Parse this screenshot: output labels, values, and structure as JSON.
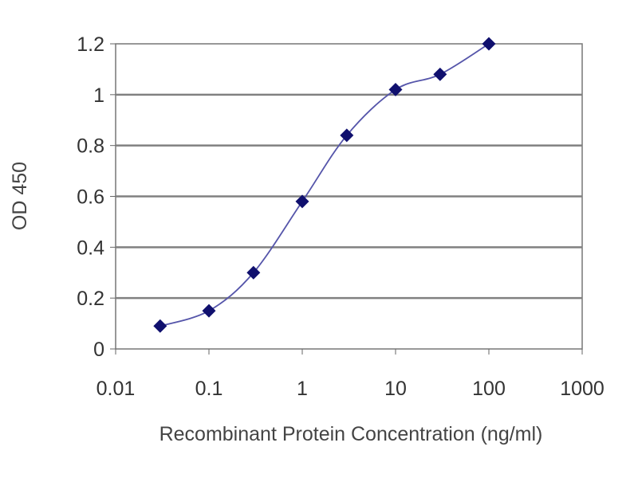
{
  "chart_data": {
    "type": "line",
    "xscale": "log",
    "xlabel": "Recombinant Protein Concentration (ng/ml)",
    "ylabel": "OD 450",
    "xlim": [
      0.01,
      1000
    ],
    "ylim": [
      0,
      1.2
    ],
    "x_tick_values": [
      0.01,
      0.1,
      1,
      10,
      100,
      1000
    ],
    "x_tick_labels": [
      "0.01",
      "0.1",
      "1",
      "10",
      "100",
      "1000"
    ],
    "y_tick_values": [
      0,
      0.2,
      0.4,
      0.6,
      0.8,
      1,
      1.2
    ],
    "y_tick_labels": [
      "0",
      "0.2",
      "0.4",
      "0.6",
      "0.8",
      "1",
      "1.2"
    ],
    "grid": "horizontal",
    "series": [
      {
        "x": [
          0.03,
          0.1,
          0.3,
          1,
          3,
          10,
          30,
          100
        ],
        "y": [
          0.09,
          0.15,
          0.3,
          0.58,
          0.84,
          1.02,
          1.08,
          1.2
        ]
      }
    ],
    "colors": {
      "line": "#5555aa",
      "marker": "#10106e",
      "grid": "#808080",
      "axis": "#666666",
      "text": "#333333"
    }
  }
}
